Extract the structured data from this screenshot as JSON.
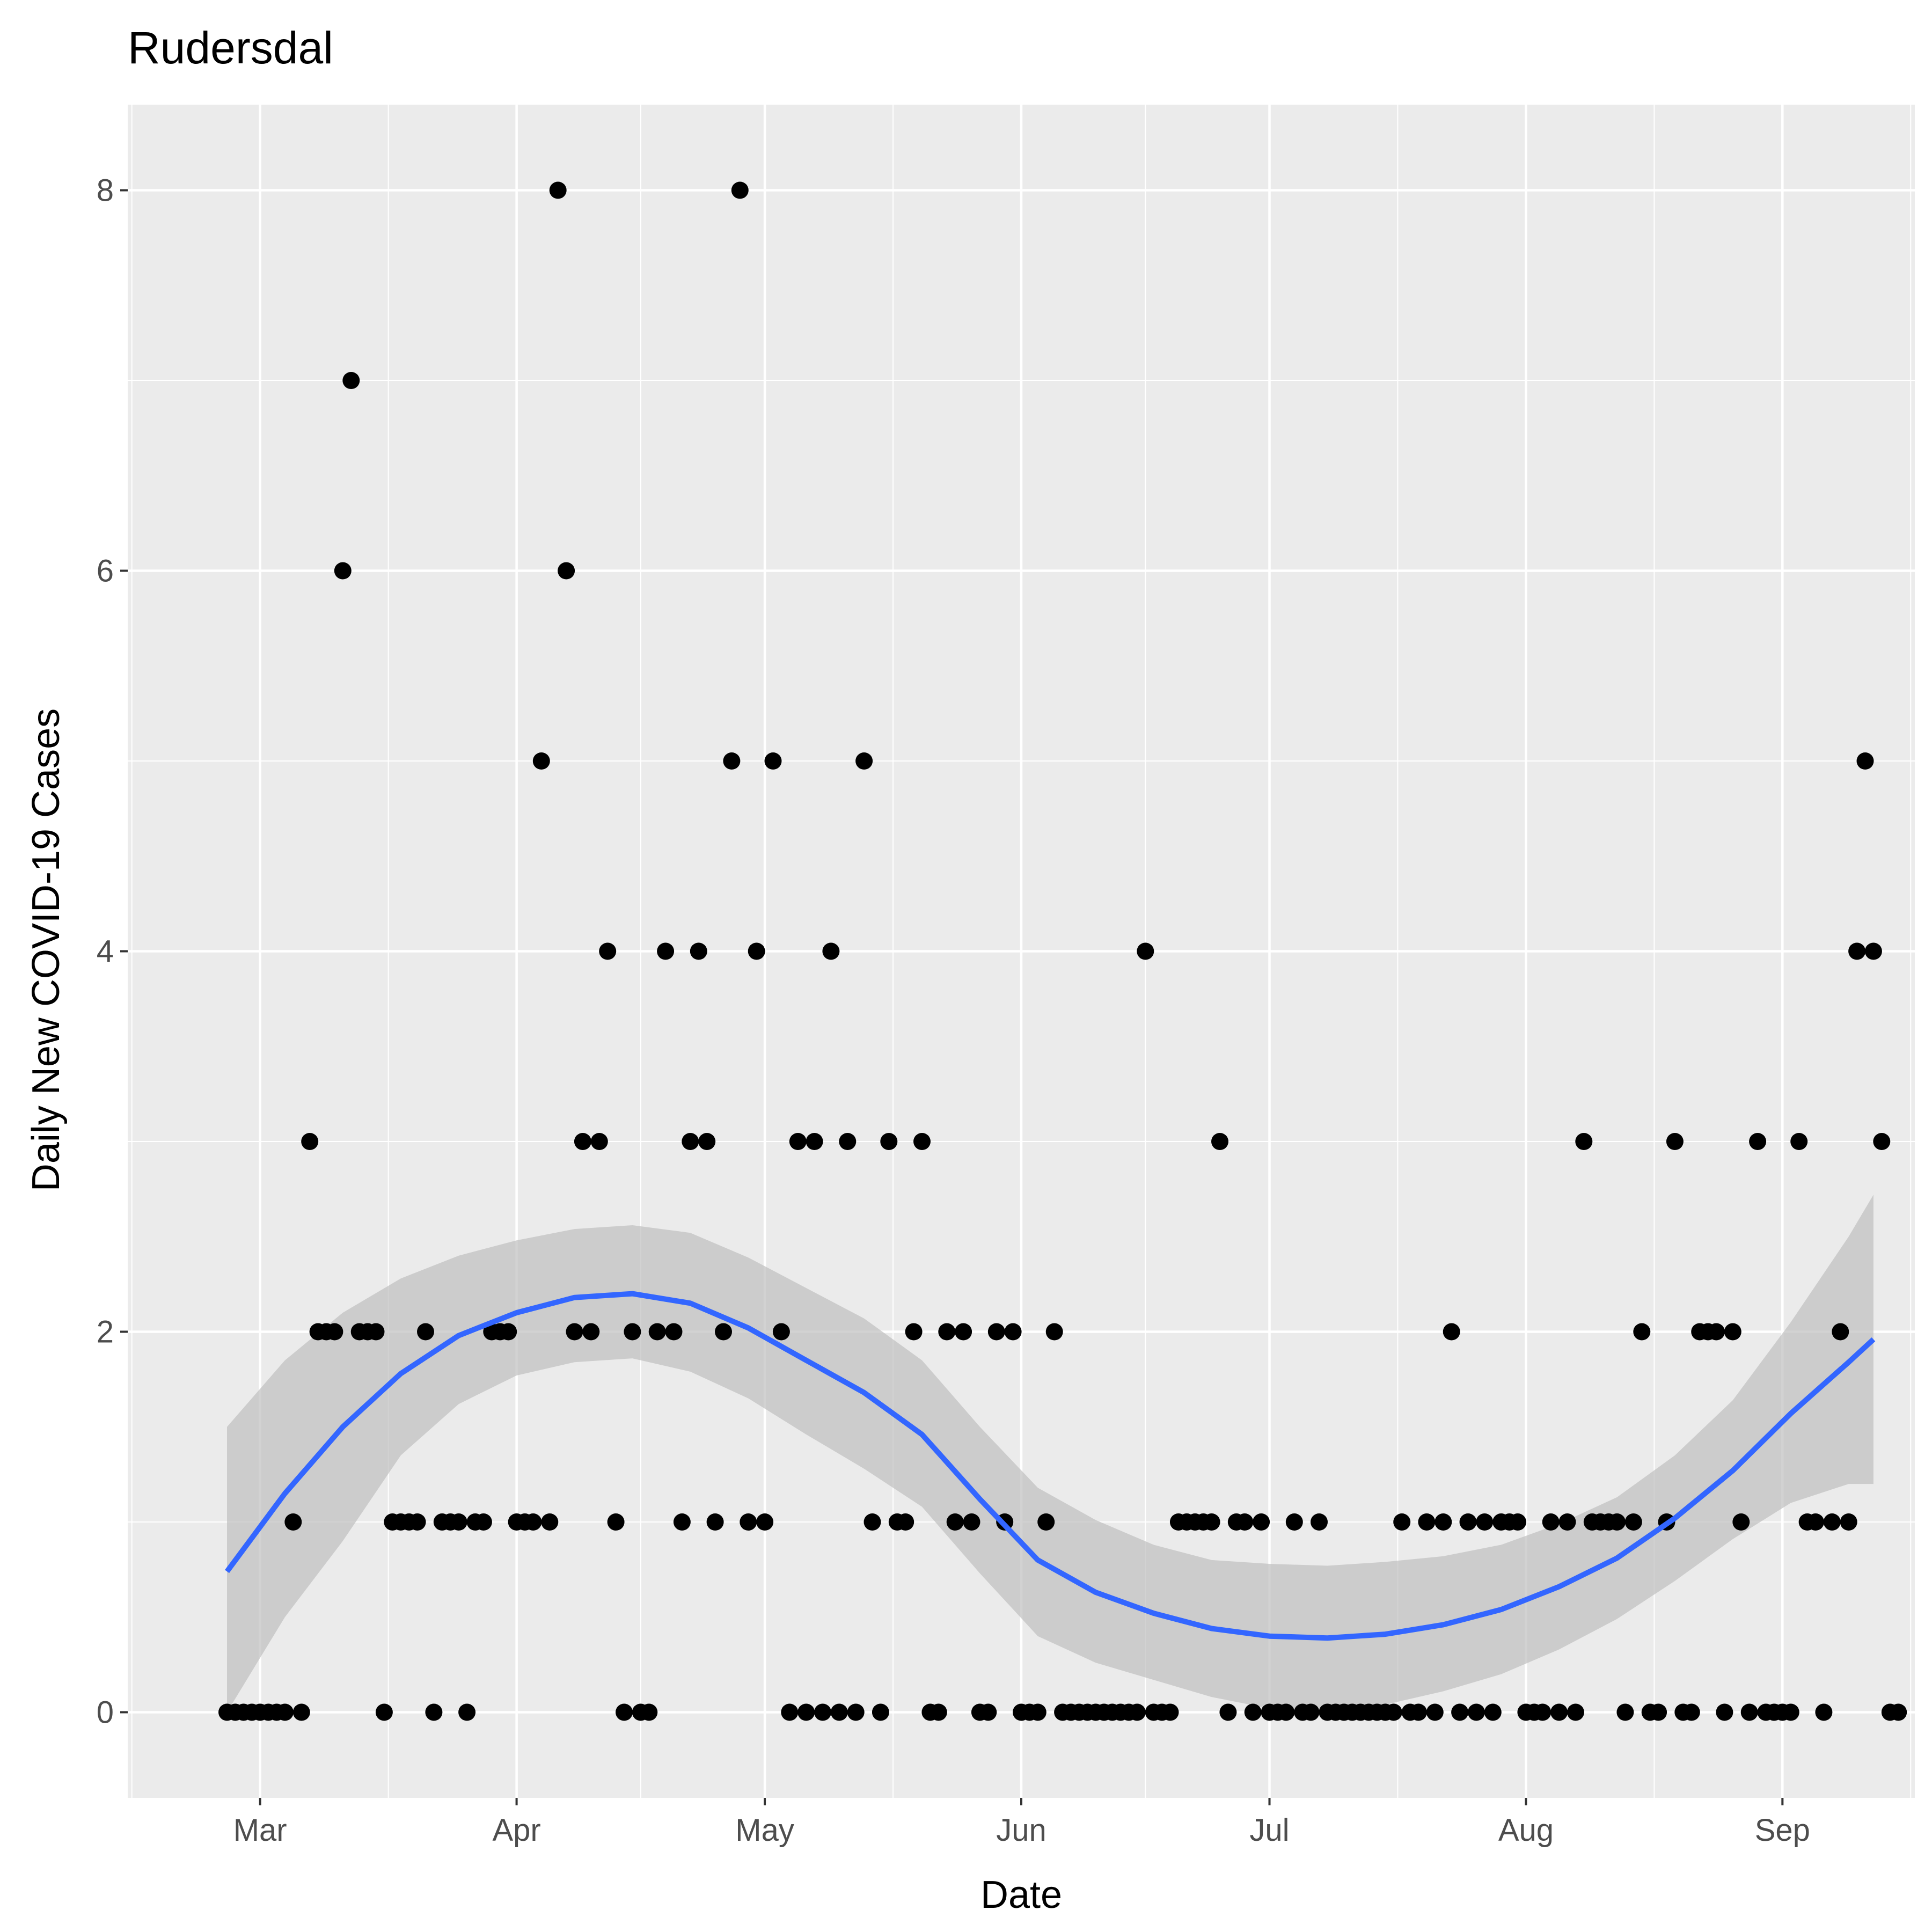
{
  "chart_data": {
    "type": "scatter",
    "title": "Rudersdal",
    "xlabel": "Date",
    "ylabel": "Daily New COVID-19 Cases",
    "x_ticks": [
      {
        "label": "Mar",
        "date": "2020-03-01"
      },
      {
        "label": "Apr",
        "date": "2020-04-01"
      },
      {
        "label": "May",
        "date": "2020-05-01"
      },
      {
        "label": "Jun",
        "date": "2020-06-01"
      },
      {
        "label": "Jul",
        "date": "2020-07-01"
      },
      {
        "label": "Aug",
        "date": "2020-08-01"
      },
      {
        "label": "Sep",
        "date": "2020-09-01"
      }
    ],
    "y_ticks": [
      0,
      2,
      4,
      6,
      8
    ],
    "xlim": [
      "2020-02-14",
      "2020-09-17"
    ],
    "ylim": [
      -0.45,
      8.45
    ],
    "grid": true,
    "legend": "none",
    "colors": {
      "panel": "#ebebeb",
      "grid": "#ffffff",
      "points": "#000000",
      "smooth_line": "#3366ff",
      "ribbon": "#bfbfbf",
      "tick_label": "#4d4d4d"
    },
    "points": [
      [
        "2020-02-26",
        0
      ],
      [
        "2020-02-27",
        0
      ],
      [
        "2020-02-28",
        0
      ],
      [
        "2020-02-29",
        0
      ],
      [
        "2020-03-01",
        0
      ],
      [
        "2020-03-02",
        0
      ],
      [
        "2020-03-03",
        0
      ],
      [
        "2020-03-04",
        0
      ],
      [
        "2020-03-05",
        1
      ],
      [
        "2020-03-06",
        0
      ],
      [
        "2020-03-07",
        3
      ],
      [
        "2020-03-08",
        2
      ],
      [
        "2020-03-09",
        2
      ],
      [
        "2020-03-10",
        2
      ],
      [
        "2020-03-11",
        6
      ],
      [
        "2020-03-12",
        7
      ],
      [
        "2020-03-13",
        2
      ],
      [
        "2020-03-14",
        2
      ],
      [
        "2020-03-15",
        2
      ],
      [
        "2020-03-16",
        0
      ],
      [
        "2020-03-17",
        1
      ],
      [
        "2020-03-18",
        1
      ],
      [
        "2020-03-19",
        1
      ],
      [
        "2020-03-20",
        1
      ],
      [
        "2020-03-21",
        2
      ],
      [
        "2020-03-22",
        0
      ],
      [
        "2020-03-23",
        1
      ],
      [
        "2020-03-24",
        1
      ],
      [
        "2020-03-25",
        1
      ],
      [
        "2020-03-26",
        0
      ],
      [
        "2020-03-27",
        1
      ],
      [
        "2020-03-28",
        1
      ],
      [
        "2020-03-29",
        2
      ],
      [
        "2020-03-30",
        2
      ],
      [
        "2020-03-31",
        2
      ],
      [
        "2020-04-01",
        1
      ],
      [
        "2020-04-02",
        1
      ],
      [
        "2020-04-03",
        1
      ],
      [
        "2020-04-04",
        5
      ],
      [
        "2020-04-05",
        1
      ],
      [
        "2020-04-06",
        8
      ],
      [
        "2020-04-07",
        6
      ],
      [
        "2020-04-08",
        2
      ],
      [
        "2020-04-09",
        3
      ],
      [
        "2020-04-10",
        2
      ],
      [
        "2020-04-11",
        3
      ],
      [
        "2020-04-12",
        4
      ],
      [
        "2020-04-13",
        1
      ],
      [
        "2020-04-14",
        0
      ],
      [
        "2020-04-15",
        2
      ],
      [
        "2020-04-16",
        0
      ],
      [
        "2020-04-17",
        0
      ],
      [
        "2020-04-18",
        2
      ],
      [
        "2020-04-19",
        4
      ],
      [
        "2020-04-20",
        2
      ],
      [
        "2020-04-21",
        1
      ],
      [
        "2020-04-22",
        3
      ],
      [
        "2020-04-23",
        4
      ],
      [
        "2020-04-24",
        3
      ],
      [
        "2020-04-25",
        1
      ],
      [
        "2020-04-26",
        2
      ],
      [
        "2020-04-27",
        5
      ],
      [
        "2020-04-28",
        8
      ],
      [
        "2020-04-29",
        1
      ],
      [
        "2020-04-30",
        4
      ],
      [
        "2020-05-01",
        1
      ],
      [
        "2020-05-02",
        5
      ],
      [
        "2020-05-03",
        2
      ],
      [
        "2020-05-04",
        0
      ],
      [
        "2020-05-05",
        3
      ],
      [
        "2020-05-06",
        0
      ],
      [
        "2020-05-07",
        3
      ],
      [
        "2020-05-08",
        0
      ],
      [
        "2020-05-09",
        4
      ],
      [
        "2020-05-10",
        0
      ],
      [
        "2020-05-11",
        3
      ],
      [
        "2020-05-12",
        0
      ],
      [
        "2020-05-13",
        5
      ],
      [
        "2020-05-14",
        1
      ],
      [
        "2020-05-15",
        0
      ],
      [
        "2020-05-16",
        3
      ],
      [
        "2020-05-17",
        1
      ],
      [
        "2020-05-18",
        1
      ],
      [
        "2020-05-19",
        2
      ],
      [
        "2020-05-20",
        3
      ],
      [
        "2020-05-21",
        0
      ],
      [
        "2020-05-22",
        0
      ],
      [
        "2020-05-23",
        2
      ],
      [
        "2020-05-24",
        1
      ],
      [
        "2020-05-25",
        2
      ],
      [
        "2020-05-26",
        1
      ],
      [
        "2020-05-27",
        0
      ],
      [
        "2020-05-28",
        0
      ],
      [
        "2020-05-29",
        2
      ],
      [
        "2020-05-30",
        1
      ],
      [
        "2020-05-31",
        2
      ],
      [
        "2020-06-01",
        0
      ],
      [
        "2020-06-02",
        0
      ],
      [
        "2020-06-03",
        0
      ],
      [
        "2020-06-04",
        1
      ],
      [
        "2020-06-05",
        2
      ],
      [
        "2020-06-06",
        0
      ],
      [
        "2020-06-07",
        0
      ],
      [
        "2020-06-08",
        0
      ],
      [
        "2020-06-09",
        0
      ],
      [
        "2020-06-10",
        0
      ],
      [
        "2020-06-11",
        0
      ],
      [
        "2020-06-12",
        0
      ],
      [
        "2020-06-13",
        0
      ],
      [
        "2020-06-14",
        0
      ],
      [
        "2020-06-15",
        0
      ],
      [
        "2020-06-16",
        4
      ],
      [
        "2020-06-17",
        0
      ],
      [
        "2020-06-18",
        0
      ],
      [
        "2020-06-19",
        0
      ],
      [
        "2020-06-20",
        1
      ],
      [
        "2020-06-21",
        1
      ],
      [
        "2020-06-22",
        1
      ],
      [
        "2020-06-23",
        1
      ],
      [
        "2020-06-24",
        1
      ],
      [
        "2020-06-25",
        3
      ],
      [
        "2020-06-26",
        0
      ],
      [
        "2020-06-27",
        1
      ],
      [
        "2020-06-28",
        1
      ],
      [
        "2020-06-29",
        0
      ],
      [
        "2020-06-30",
        1
      ],
      [
        "2020-07-01",
        0
      ],
      [
        "2020-07-02",
        0
      ],
      [
        "2020-07-03",
        0
      ],
      [
        "2020-07-04",
        1
      ],
      [
        "2020-07-05",
        0
      ],
      [
        "2020-07-06",
        0
      ],
      [
        "2020-07-07",
        1
      ],
      [
        "2020-07-08",
        0
      ],
      [
        "2020-07-09",
        0
      ],
      [
        "2020-07-10",
        0
      ],
      [
        "2020-07-11",
        0
      ],
      [
        "2020-07-12",
        0
      ],
      [
        "2020-07-13",
        0
      ],
      [
        "2020-07-14",
        0
      ],
      [
        "2020-07-15",
        0
      ],
      [
        "2020-07-16",
        0
      ],
      [
        "2020-07-17",
        1
      ],
      [
        "2020-07-18",
        0
      ],
      [
        "2020-07-19",
        0
      ],
      [
        "2020-07-20",
        1
      ],
      [
        "2020-07-21",
        0
      ],
      [
        "2020-07-22",
        1
      ],
      [
        "2020-07-23",
        2
      ],
      [
        "2020-07-24",
        0
      ],
      [
        "2020-07-25",
        1
      ],
      [
        "2020-07-26",
        0
      ],
      [
        "2020-07-27",
        1
      ],
      [
        "2020-07-28",
        0
      ],
      [
        "2020-07-29",
        1
      ],
      [
        "2020-07-30",
        1
      ],
      [
        "2020-07-31",
        1
      ],
      [
        "2020-08-01",
        0
      ],
      [
        "2020-08-02",
        0
      ],
      [
        "2020-08-03",
        0
      ],
      [
        "2020-08-04",
        1
      ],
      [
        "2020-08-05",
        0
      ],
      [
        "2020-08-06",
        1
      ],
      [
        "2020-08-07",
        0
      ],
      [
        "2020-08-08",
        3
      ],
      [
        "2020-08-09",
        1
      ],
      [
        "2020-08-10",
        1
      ],
      [
        "2020-08-11",
        1
      ],
      [
        "2020-08-12",
        1
      ],
      [
        "2020-08-13",
        0
      ],
      [
        "2020-08-14",
        1
      ],
      [
        "2020-08-15",
        2
      ],
      [
        "2020-08-16",
        0
      ],
      [
        "2020-08-17",
        0
      ],
      [
        "2020-08-18",
        1
      ],
      [
        "2020-08-19",
        3
      ],
      [
        "2020-08-20",
        0
      ],
      [
        "2020-08-21",
        0
      ],
      [
        "2020-08-22",
        2
      ],
      [
        "2020-08-23",
        2
      ],
      [
        "2020-08-24",
        2
      ],
      [
        "2020-08-25",
        0
      ],
      [
        "2020-08-26",
        2
      ],
      [
        "2020-08-27",
        1
      ],
      [
        "2020-08-28",
        0
      ],
      [
        "2020-08-29",
        3
      ],
      [
        "2020-08-30",
        0
      ],
      [
        "2020-08-31",
        0
      ],
      [
        "2020-09-01",
        0
      ],
      [
        "2020-09-02",
        0
      ],
      [
        "2020-09-03",
        3
      ],
      [
        "2020-09-04",
        1
      ],
      [
        "2020-09-05",
        1
      ],
      [
        "2020-09-06",
        0
      ],
      [
        "2020-09-07",
        1
      ],
      [
        "2020-09-08",
        2
      ],
      [
        "2020-09-09",
        1
      ],
      [
        "2020-09-10",
        4
      ],
      [
        "2020-09-11",
        5
      ],
      [
        "2020-09-12",
        4
      ],
      [
        "2020-09-13",
        3
      ],
      [
        "2020-09-14",
        0
      ],
      [
        "2020-09-15",
        0
      ]
    ],
    "smooth": [
      [
        "2020-02-26",
        0.74,
        0.0,
        1.5
      ],
      [
        "2020-03-04",
        1.15,
        0.5,
        1.85
      ],
      [
        "2020-03-11",
        1.5,
        0.9,
        2.1
      ],
      [
        "2020-03-18",
        1.78,
        1.35,
        2.28
      ],
      [
        "2020-03-25",
        1.98,
        1.62,
        2.4
      ],
      [
        "2020-04-01",
        2.1,
        1.77,
        2.48
      ],
      [
        "2020-04-08",
        2.18,
        1.84,
        2.54
      ],
      [
        "2020-04-15",
        2.2,
        1.86,
        2.56
      ],
      [
        "2020-04-22",
        2.15,
        1.79,
        2.52
      ],
      [
        "2020-04-29",
        2.02,
        1.65,
        2.39
      ],
      [
        "2020-05-06",
        1.85,
        1.46,
        2.23
      ],
      [
        "2020-05-13",
        1.68,
        1.28,
        2.07
      ],
      [
        "2020-05-20",
        1.46,
        1.08,
        1.85
      ],
      [
        "2020-05-27",
        1.12,
        0.73,
        1.5
      ],
      [
        "2020-06-03",
        0.8,
        0.4,
        1.18
      ],
      [
        "2020-06-10",
        0.63,
        0.26,
        1.01
      ],
      [
        "2020-06-17",
        0.52,
        0.17,
        0.88
      ],
      [
        "2020-06-24",
        0.44,
        0.08,
        0.8
      ],
      [
        "2020-07-01",
        0.4,
        0.02,
        0.78
      ],
      [
        "2020-07-08",
        0.39,
        0.0,
        0.77
      ],
      [
        "2020-07-15",
        0.41,
        0.04,
        0.79
      ],
      [
        "2020-07-22",
        0.46,
        0.11,
        0.82
      ],
      [
        "2020-07-29",
        0.54,
        0.2,
        0.88
      ],
      [
        "2020-08-05",
        0.66,
        0.33,
        0.99
      ],
      [
        "2020-08-12",
        0.81,
        0.49,
        1.13
      ],
      [
        "2020-08-19",
        1.02,
        0.69,
        1.35
      ],
      [
        "2020-08-26",
        1.27,
        0.91,
        1.64
      ],
      [
        "2020-09-02",
        1.57,
        1.1,
        2.05
      ],
      [
        "2020-09-09",
        1.84,
        1.2,
        2.5
      ],
      [
        "2020-09-12",
        1.96,
        1.2,
        2.72
      ]
    ]
  }
}
